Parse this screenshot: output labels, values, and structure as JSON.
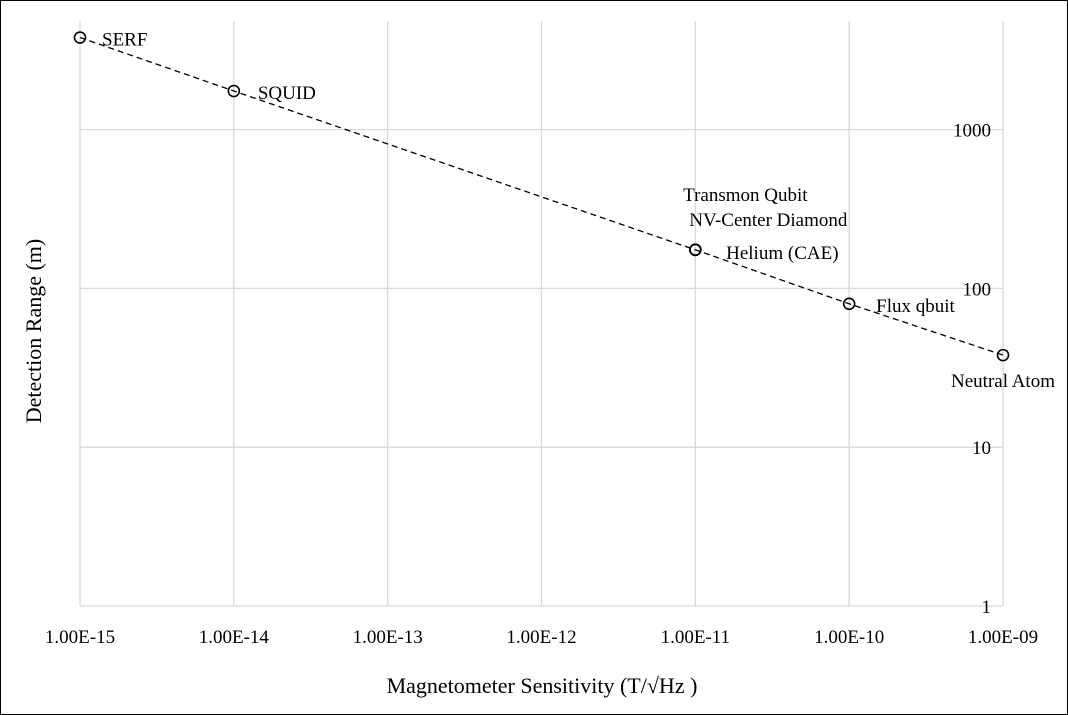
{
  "chart_data": {
    "type": "scatter",
    "title": "",
    "xlabel": "Magnetometer Sensitivity (T/√Hz )",
    "ylabel": "Detection Range (m)",
    "x_scale": "log",
    "y_scale": "log",
    "xlim": [
      1e-15,
      1e-09
    ],
    "ylim": [
      1,
      5000
    ],
    "x_ticks": [
      1e-15,
      1e-14,
      1e-13,
      1e-12,
      1e-11,
      1e-10,
      1e-09
    ],
    "x_tick_labels": [
      "1.00E-15",
      "1.00E-14",
      "1.00E-13",
      "1.00E-12",
      "1.00E-11",
      "1.00E-10",
      "1.00E-09"
    ],
    "y_ticks": [
      1,
      10,
      100,
      1000
    ],
    "y_tick_labels": [
      "1",
      "10",
      "100",
      "1000"
    ],
    "grid": true,
    "trendline": "dashed",
    "series": [
      {
        "marker": "open-circle",
        "points": [
          {
            "label": "SERF",
            "x": 1e-15,
            "y": 3800
          },
          {
            "label": "SQUID",
            "x": 1e-14,
            "y": 1750
          },
          {
            "label": "Transmon Qubit",
            "x": 1e-11,
            "y": 175
          },
          {
            "label": "NV-Center Diamond",
            "x": 1e-11,
            "y": 175
          },
          {
            "label": "Helium (CAE)",
            "x": 1e-11,
            "y": 175
          },
          {
            "label": "Flux qbuit",
            "x": 1e-10,
            "y": 80
          },
          {
            "label": "Neutral Atom",
            "x": 1e-09,
            "y": 38
          }
        ]
      }
    ],
    "colors": {
      "grid": "#d9d9d9",
      "line": "#000000",
      "marker": "#000000"
    }
  }
}
